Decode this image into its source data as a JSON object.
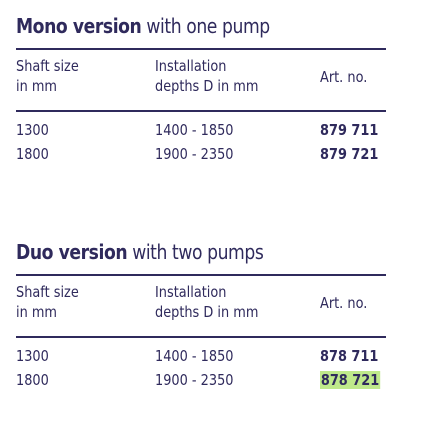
{
  "mono": {
    "title_bold": "Mono version",
    "title_rest": " with one pump",
    "header": {
      "col1_line1": "Shaft size",
      "col1_line2": "in mm",
      "col2_line1": "Installation",
      "col2_line2": "depths D in mm",
      "col3": "Art. no."
    },
    "rows": [
      {
        "shaft": "1300",
        "depth": "1400 - 1850",
        "art": "879 711"
      },
      {
        "shaft": "1800",
        "depth": "1900 - 2350",
        "art": "879 721"
      }
    ]
  },
  "duo": {
    "title_bold": "Duo version",
    "title_rest": " with two pumps",
    "header": {
      "col1_line1": "Shaft size",
      "col1_line2": "in mm",
      "col2_line1": "Installation",
      "col2_line2": "depths D in mm",
      "col3": "Art. no."
    },
    "rows": [
      {
        "shaft": "1300",
        "depth": "1400 - 1850",
        "art": "878 711"
      },
      {
        "shaft": "1800",
        "depth": "1900 - 2350",
        "art": "878 721"
      }
    ]
  },
  "colors": {
    "text": "#2f2a5c",
    "highlight": "#bfe98b"
  }
}
